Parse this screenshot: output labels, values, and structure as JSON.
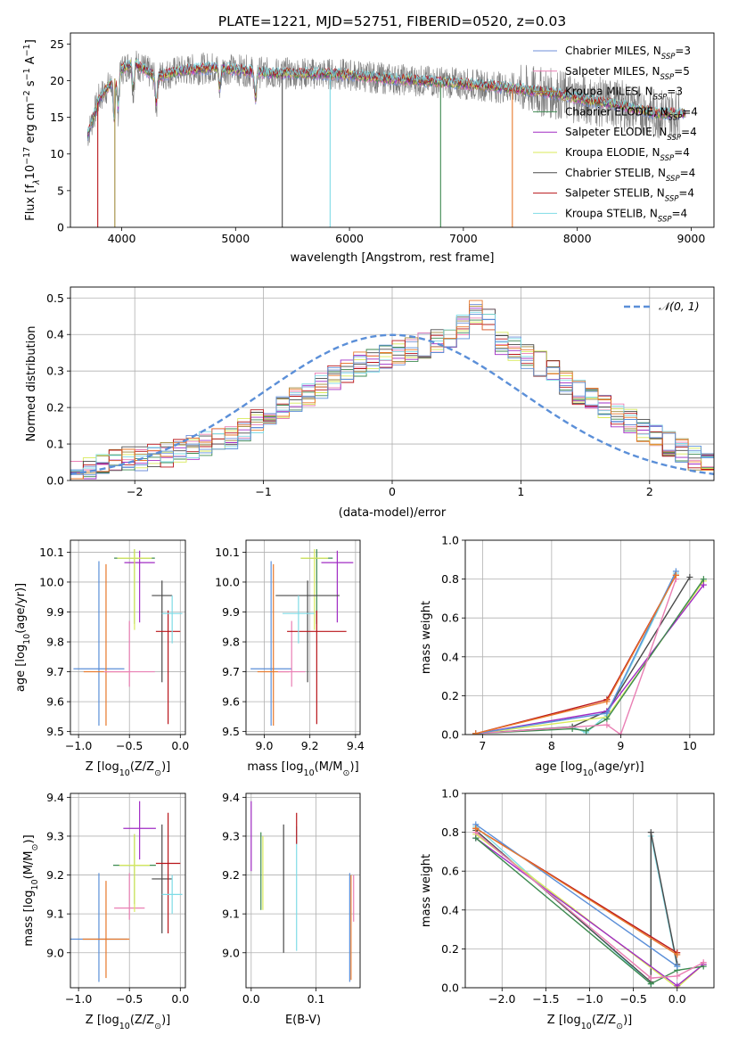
{
  "figure": {
    "title": "PLATE=1221, MJD=52751, FIBERID=0520, z=0.03",
    "series_styles": [
      {
        "name": "Chabrier MILES",
        "nssp": "3",
        "color": "#6f8fd8"
      },
      {
        "name": "Salpeter MILES",
        "nssp": "5",
        "color": "#e97fb4"
      },
      {
        "name": "Kroupa MILES",
        "nssp": "3",
        "color": "#a08a3c"
      },
      {
        "name": "Chabrier ELODIE",
        "nssp": "4",
        "color": "#3d8a50"
      },
      {
        "name": "Salpeter ELODIE",
        "nssp": "4",
        "color": "#a12cc4"
      },
      {
        "name": "Kroupa ELODIE",
        "nssp": "4",
        "color": "#d8ea5a"
      },
      {
        "name": "Chabrier STELIB",
        "nssp": "4",
        "color": "#4a4a4a"
      },
      {
        "name": "Salpeter STELIB",
        "nssp": "4",
        "color": "#b8141a"
      },
      {
        "name": "Kroupa STELIB",
        "nssp": "4",
        "color": "#7fdbe6"
      }
    ],
    "extra_colors": {
      "data_spectrum": "#7a7a7a",
      "orange": "#e8782a",
      "blue": "#5b8fd8",
      "grid": "#b0b0b0"
    }
  },
  "chart_data": [
    {
      "id": "spectrum",
      "type": "line",
      "xlabel": "wavelength [Angstrom, rest frame]",
      "ylabel": "Flux [f_λ10^-17 erg cm^-2 s^-1 A^-1]",
      "xlim": [
        3550,
        9200
      ],
      "ylim": [
        0,
        26.5
      ],
      "xticks": [
        4000,
        5000,
        6000,
        7000,
        8000,
        9000
      ],
      "yticks": [
        0,
        5,
        10,
        15,
        20,
        25
      ],
      "grid": false,
      "legend": "top-right",
      "continuum": {
        "x": [
          3700,
          3800,
          3900,
          4000,
          4100,
          4200,
          4300,
          4500,
          4800,
          5000,
          5300,
          5600,
          6000,
          6300,
          6600,
          6900,
          7200,
          7500,
          7800,
          8100,
          8400,
          8700,
          8900
        ],
        "y": [
          12.5,
          17.5,
          19.5,
          21.5,
          22.5,
          21.5,
          20.5,
          21.3,
          21.8,
          21.5,
          21.0,
          21.0,
          20.8,
          20.3,
          20.0,
          19.7,
          19.3,
          18.8,
          18.2,
          17.3,
          16.6,
          15.5,
          15.5
        ]
      },
      "absorption_features": [
        {
          "x": 3934,
          "depth": 6
        },
        {
          "x": 3969,
          "depth": 5
        },
        {
          "x": 4102,
          "depth": 4
        },
        {
          "x": 4304,
          "depth": 4
        },
        {
          "x": 4861,
          "depth": 3
        },
        {
          "x": 5175,
          "depth": 4
        }
      ],
      "dropout_lines": [
        {
          "x": 3790,
          "color": "#b8141a"
        },
        {
          "x": 3940,
          "color": "#a08a3c"
        },
        {
          "x": 5410,
          "color": "#4a4a4a"
        },
        {
          "x": 5830,
          "color": "#7fdbe6"
        },
        {
          "x": 6800,
          "color": "#3d8a50"
        },
        {
          "x": 7430,
          "color": "#e8782a"
        }
      ]
    },
    {
      "id": "residuals",
      "type": "histogram",
      "xlabel": "(data-model)/error",
      "ylabel": "Normed distribution",
      "xlim": [
        -2.5,
        2.5
      ],
      "ylim": [
        0,
        0.53
      ],
      "xticks": [
        -2,
        -1,
        0,
        1,
        2
      ],
      "yticks": [
        0.0,
        0.1,
        0.2,
        0.3,
        0.4,
        0.5
      ],
      "grid": true,
      "legend": "top-right",
      "reference": {
        "label": "𝒩(0, 1)",
        "mean": 0,
        "sigma": 1
      },
      "bin_width": 0.1,
      "bin_start": -2.5,
      "histogram_values": [
        0.02,
        0.03,
        0.04,
        0.05,
        0.06,
        0.06,
        0.07,
        0.07,
        0.08,
        0.09,
        0.1,
        0.11,
        0.12,
        0.14,
        0.16,
        0.18,
        0.2,
        0.22,
        0.24,
        0.26,
        0.28,
        0.3,
        0.32,
        0.33,
        0.34,
        0.35,
        0.36,
        0.37,
        0.38,
        0.39,
        0.42,
        0.46,
        0.44,
        0.38,
        0.36,
        0.34,
        0.32,
        0.3,
        0.27,
        0.24,
        0.22,
        0.2,
        0.18,
        0.16,
        0.14,
        0.12,
        0.1,
        0.08,
        0.06,
        0.05
      ]
    },
    {
      "id": "age-vs-Z",
      "type": "scatter",
      "xlabel": "Z [log10(Z/Z☉)]",
      "ylabel": "age [log10(age/yr)]",
      "xlim": [
        -1.08,
        0.05
      ],
      "ylim": [
        9.49,
        10.14
      ],
      "xticks": [
        -1.0,
        -0.5,
        0.0
      ],
      "yticks": [
        9.5,
        9.6,
        9.7,
        9.8,
        9.9,
        10.0,
        10.1
      ],
      "grid": true,
      "points": [
        {
          "x": -0.8,
          "y": 9.71,
          "xerr": 0.25,
          "yerr": [
            0.19,
            0.36
          ],
          "color": "#5b8fd8"
        },
        {
          "x": -0.73,
          "y": 9.7,
          "xerr": 0.22,
          "yerr": [
            0.18,
            0.36
          ],
          "color": "#e8782a"
        },
        {
          "x": -0.5,
          "y": 9.7,
          "xerr": 0.25,
          "yerr": [
            0.05,
            0.17
          ],
          "color": "#e97fb4"
        },
        {
          "x": -0.45,
          "y": 10.08,
          "xerr": 0.2,
          "yerr": [
            0.22,
            0.03
          ],
          "color": "#3d8a50"
        },
        {
          "x": -0.4,
          "y": 10.065,
          "xerr": 0.15,
          "yerr": [
            0.2,
            0.04
          ],
          "color": "#a12cc4"
        },
        {
          "x": -0.45,
          "y": 10.08,
          "xerr": 0.17,
          "yerr": [
            0.24,
            0.03
          ],
          "color": "#d8ea5a"
        },
        {
          "x": -0.18,
          "y": 9.955,
          "xerr": 0.1,
          "yerr": [
            0.29,
            0.05
          ],
          "color": "#4a4a4a"
        },
        {
          "x": -0.12,
          "y": 9.835,
          "xerr": 0.12,
          "yerr": [
            0.31,
            0.07
          ],
          "color": "#b8141a"
        },
        {
          "x": -0.08,
          "y": 9.895,
          "xerr": 0.1,
          "yerr": [
            0.1,
            0.06
          ],
          "color": "#7fdbe6"
        }
      ]
    },
    {
      "id": "age-vs-mass",
      "type": "scatter",
      "xlabel": "mass [log10(M/M☉)]",
      "ylabel": "",
      "xlim": [
        8.92,
        9.42
      ],
      "ylim": [
        9.49,
        10.14
      ],
      "xticks": [
        9.0,
        9.2,
        9.4
      ],
      "yticks": [
        9.5,
        9.6,
        9.7,
        9.8,
        9.9,
        10.0,
        10.1
      ],
      "grid": true,
      "points": [
        {
          "x": 9.03,
          "y": 9.71,
          "xerr": 0.09,
          "yerr": [
            0.19,
            0.36
          ],
          "color": "#5b8fd8"
        },
        {
          "x": 9.04,
          "y": 9.7,
          "xerr": 0.07,
          "yerr": [
            0.18,
            0.36
          ],
          "color": "#e8782a"
        },
        {
          "x": 9.12,
          "y": 9.7,
          "xerr": 0.06,
          "yerr": [
            0.05,
            0.17
          ],
          "color": "#e97fb4"
        },
        {
          "x": 9.23,
          "y": 10.08,
          "xerr": 0.07,
          "yerr": [
            0.22,
            0.03
          ],
          "color": "#3d8a50"
        },
        {
          "x": 9.32,
          "y": 10.065,
          "xerr": 0.07,
          "yerr": [
            0.2,
            0.04
          ],
          "color": "#a12cc4"
        },
        {
          "x": 9.22,
          "y": 10.08,
          "xerr": 0.06,
          "yerr": [
            0.24,
            0.03
          ],
          "color": "#d8ea5a"
        },
        {
          "x": 9.19,
          "y": 9.955,
          "xerr": 0.14,
          "yerr": [
            0.29,
            0.05
          ],
          "color": "#4a4a4a"
        },
        {
          "x": 9.23,
          "y": 9.835,
          "xerr": 0.13,
          "yerr": [
            0.31,
            0.07
          ],
          "color": "#b8141a"
        },
        {
          "x": 9.15,
          "y": 9.895,
          "xerr": 0.07,
          "yerr": [
            0.1,
            0.06
          ],
          "color": "#7fdbe6"
        }
      ]
    },
    {
      "id": "weight-vs-age",
      "type": "line",
      "xlabel": "age [log10(age/yr)]",
      "ylabel": "mass weight",
      "xlim": [
        6.75,
        10.35
      ],
      "ylim": [
        0,
        1.0
      ],
      "xticks": [
        7,
        8,
        9,
        10
      ],
      "yticks": [
        0.0,
        0.2,
        0.4,
        0.6,
        0.8,
        1.0
      ],
      "grid": true,
      "series": [
        {
          "color": "#7fdbe6",
          "x": [
            6.9,
            8.3,
            8.5,
            8.8,
            9.8
          ],
          "y": [
            0.005,
            0.04,
            0.01,
            0.1,
            0.83
          ]
        },
        {
          "color": "#4a4a4a",
          "x": [
            6.9,
            8.3,
            8.8,
            10.0
          ],
          "y": [
            0.005,
            0.04,
            0.12,
            0.81
          ]
        },
        {
          "color": "#b8141a",
          "x": [
            6.9,
            8.8,
            9.8
          ],
          "y": [
            0.005,
            0.18,
            0.82
          ]
        },
        {
          "color": "#d8ea5a",
          "x": [
            6.9,
            8.8,
            10.2
          ],
          "y": [
            0.005,
            0.09,
            0.79
          ]
        },
        {
          "color": "#a12cc4",
          "x": [
            6.9,
            8.8,
            10.2
          ],
          "y": [
            0.005,
            0.12,
            0.77
          ]
        },
        {
          "color": "#3d8a50",
          "x": [
            6.9,
            8.3,
            8.5,
            8.8,
            10.2
          ],
          "y": [
            0.005,
            0.03,
            0.02,
            0.08,
            0.8
          ]
        },
        {
          "color": "#e97fb4",
          "x": [
            6.9,
            8.8,
            9.0,
            9.8
          ],
          "y": [
            0.005,
            0.05,
            0.0,
            0.8
          ]
        },
        {
          "color": "#5b8fd8",
          "x": [
            6.9,
            8.8,
            9.8
          ],
          "y": [
            0.005,
            0.11,
            0.84
          ]
        },
        {
          "color": "#e8782a",
          "x": [
            6.9,
            8.8,
            9.8
          ],
          "y": [
            0.005,
            0.17,
            0.82
          ]
        }
      ]
    },
    {
      "id": "mass-vs-Z",
      "type": "scatter",
      "xlabel": "Z [log10(Z/Z☉)]",
      "ylabel": "mass [log10(M/M☉)]",
      "xlim": [
        -1.08,
        0.05
      ],
      "ylim": [
        8.91,
        9.41
      ],
      "xticks": [
        -1.0,
        -0.5,
        0.0
      ],
      "yticks": [
        9.0,
        9.1,
        9.2,
        9.3,
        9.4
      ],
      "grid": true,
      "points": [
        {
          "x": -0.8,
          "y": 9.035,
          "xerr": 0.28,
          "yerr": [
            0.11,
            0.17
          ],
          "color": "#5b8fd8"
        },
        {
          "x": -0.73,
          "y": 9.035,
          "xerr": 0.23,
          "yerr": [
            0.1,
            0.15
          ],
          "color": "#e8782a"
        },
        {
          "x": -0.5,
          "y": 9.115,
          "xerr": 0.15,
          "yerr": [
            0.03,
            0.09
          ],
          "color": "#e97fb4"
        },
        {
          "x": -0.45,
          "y": 9.225,
          "xerr": 0.21,
          "yerr": [
            0.1,
            0.08
          ],
          "color": "#3d8a50"
        },
        {
          "x": -0.4,
          "y": 9.32,
          "xerr": 0.16,
          "yerr": [
            0.08,
            0.07
          ],
          "color": "#a12cc4"
        },
        {
          "x": -0.45,
          "y": 9.225,
          "xerr": 0.15,
          "yerr": [
            0.12,
            0.08
          ],
          "color": "#d8ea5a"
        },
        {
          "x": -0.18,
          "y": 9.19,
          "xerr": 0.1,
          "yerr": [
            0.14,
            0.14
          ],
          "color": "#4a4a4a"
        },
        {
          "x": -0.12,
          "y": 9.23,
          "xerr": 0.12,
          "yerr": [
            0.18,
            0.13
          ],
          "color": "#b8141a"
        },
        {
          "x": -0.08,
          "y": 9.15,
          "xerr": 0.1,
          "yerr": [
            0.05,
            0.05
          ],
          "color": "#7fdbe6"
        }
      ]
    },
    {
      "id": "mass-vs-ebv",
      "type": "scatter",
      "xlabel": "E(B-V)",
      "ylabel": "",
      "xlim": [
        -0.008,
        0.168
      ],
      "ylim": [
        8.91,
        9.41
      ],
      "xticks": [
        0.0,
        0.1
      ],
      "yticks": [
        9.0,
        9.1,
        9.2,
        9.3,
        9.4
      ],
      "grid": true,
      "points": [
        {
          "x": 0.0,
          "y": 9.3,
          "xerr": 0,
          "yerr": [
            0.09,
            0.09
          ],
          "color": "#a12cc4"
        },
        {
          "x": 0.015,
          "y": 9.21,
          "xerr": 0,
          "yerr": [
            0.1,
            0.1
          ],
          "color": "#3d8a50"
        },
        {
          "x": 0.018,
          "y": 9.2,
          "xerr": 0,
          "yerr": [
            0.09,
            0.1
          ],
          "color": "#d8ea5a"
        },
        {
          "x": 0.05,
          "y": 9.165,
          "xerr": 0,
          "yerr": [
            0.165,
            0.165
          ],
          "color": "#4a4a4a"
        },
        {
          "x": 0.07,
          "y": 9.165,
          "xerr": 0,
          "yerr": [
            0.16,
            0.16
          ],
          "color": "#7fdbe6"
        },
        {
          "x": 0.07,
          "y": 9.32,
          "xerr": 0,
          "yerr": [
            0.04,
            0.04
          ],
          "color": "#b8141a"
        },
        {
          "x": 0.152,
          "y": 9.065,
          "xerr": 0,
          "yerr": [
            0.14,
            0.14
          ],
          "color": "#5b8fd8"
        },
        {
          "x": 0.154,
          "y": 9.06,
          "xerr": 0,
          "yerr": [
            0.13,
            0.14
          ],
          "color": "#e8782a"
        },
        {
          "x": 0.158,
          "y": 9.14,
          "xerr": 0,
          "yerr": [
            0.06,
            0.06
          ],
          "color": "#e97fb4"
        }
      ]
    },
    {
      "id": "weight-vs-Z",
      "type": "line",
      "xlabel": "Z [log10(Z/Z☉)]",
      "ylabel": "mass weight",
      "xlim": [
        -2.42,
        0.42
      ],
      "ylim": [
        0,
        1.0
      ],
      "xticks": [
        -2.0,
        -1.5,
        -1.0,
        -0.5,
        0.0
      ],
      "xtick_labels": [
        "−2.0",
        "−1.5",
        "−1.0",
        "−0.5",
        "0.0"
      ],
      "yticks": [
        0.0,
        0.2,
        0.4,
        0.6,
        0.8,
        1.0
      ],
      "grid": true,
      "series": [
        {
          "color": "#7fdbe6",
          "x": [
            -2.3,
            -0.3,
            -0.3,
            0.0
          ],
          "y": [
            0.83,
            0.02,
            0.78,
            0.11
          ]
        },
        {
          "color": "#4a4a4a",
          "x": [
            -2.3,
            -0.3,
            -0.3,
            0.0
          ],
          "y": [
            0.81,
            0.03,
            0.8,
            0.12
          ]
        },
        {
          "color": "#b8141a",
          "x": [
            -2.3,
            0.0
          ],
          "y": [
            0.82,
            0.18
          ]
        },
        {
          "color": "#d8ea5a",
          "x": [
            -2.3,
            0.0,
            0.3
          ],
          "y": [
            0.79,
            0.0,
            0.12
          ]
        },
        {
          "color": "#a12cc4",
          "x": [
            -2.3,
            0.0,
            0.3
          ],
          "y": [
            0.77,
            0.01,
            0.12
          ]
        },
        {
          "color": "#3d8a50",
          "x": [
            -2.3,
            -0.3,
            0.0,
            0.3
          ],
          "y": [
            0.77,
            0.02,
            0.09,
            0.11
          ]
        },
        {
          "color": "#e97fb4",
          "x": [
            -2.3,
            -0.3,
            0.0,
            0.3
          ],
          "y": [
            0.8,
            0.05,
            0.06,
            0.13
          ]
        },
        {
          "color": "#5b8fd8",
          "x": [
            -2.3,
            0.0
          ],
          "y": [
            0.84,
            0.11
          ]
        },
        {
          "color": "#e8782a",
          "x": [
            -2.3,
            0.0
          ],
          "y": [
            0.82,
            0.17
          ]
        }
      ]
    }
  ]
}
